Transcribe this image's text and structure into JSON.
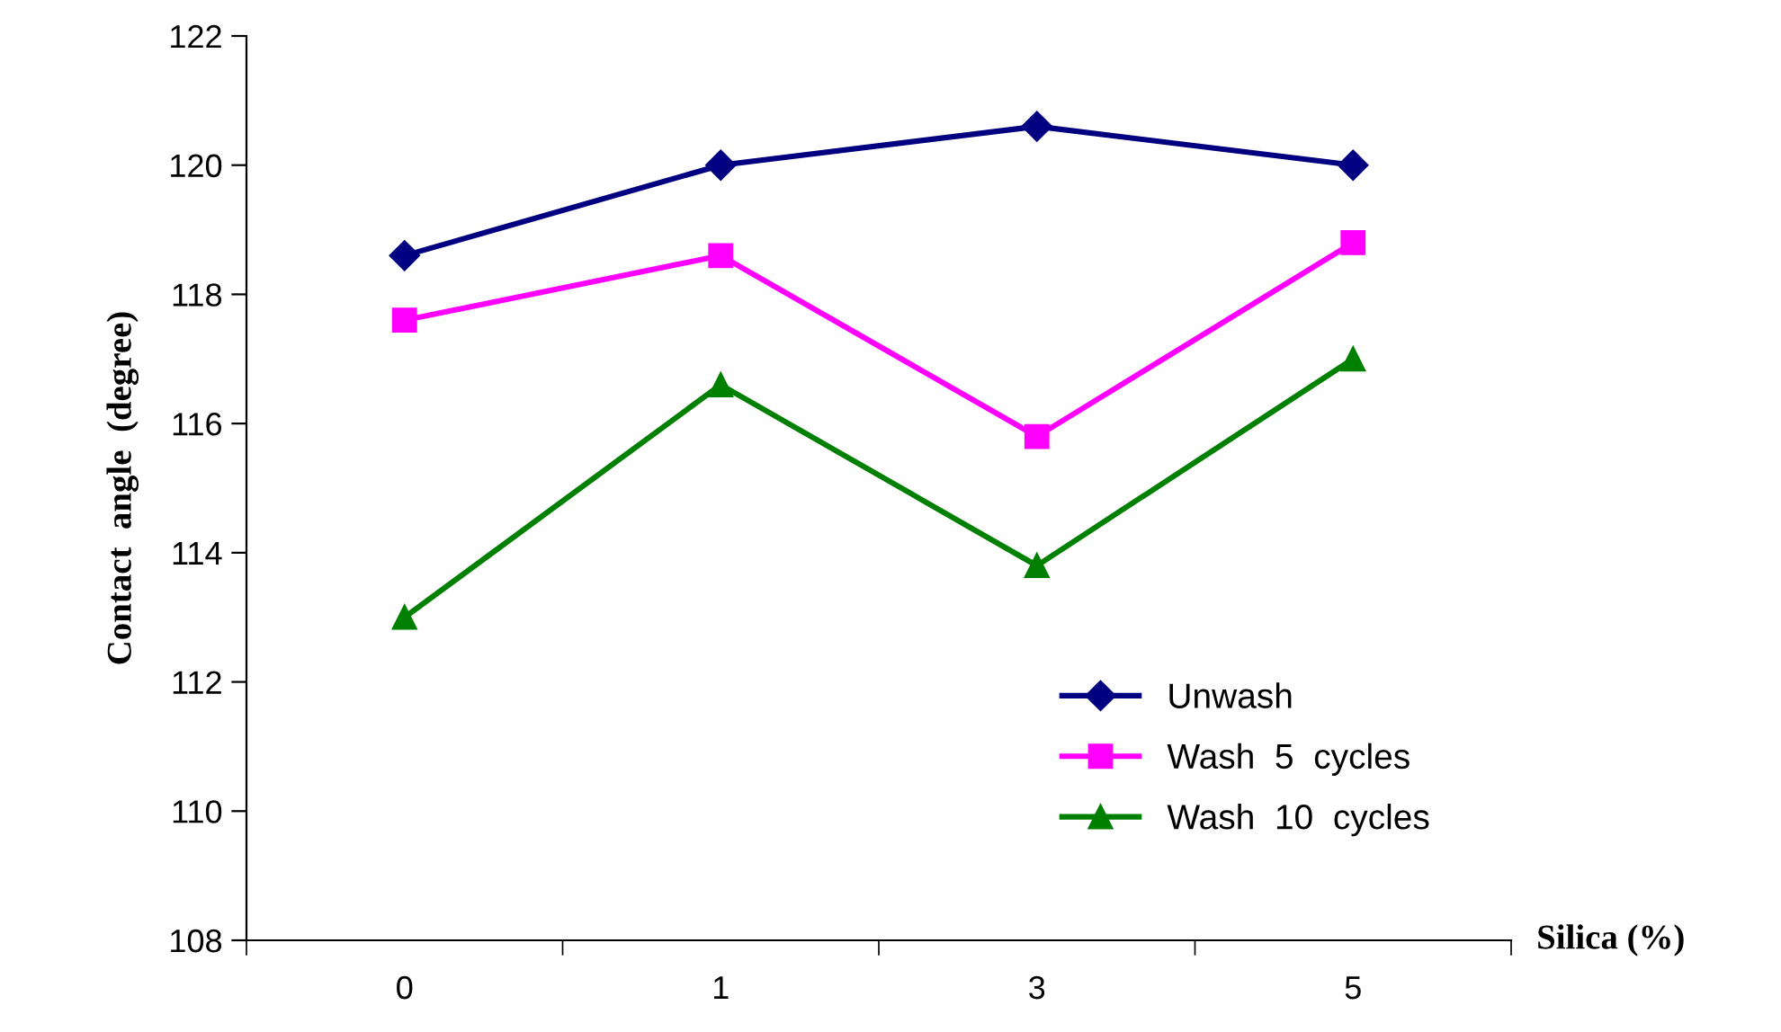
{
  "chart_data": {
    "type": "line",
    "xlabel": "Silica (%)",
    "ylabel": "Contact  angle  (degree)",
    "categories": [
      "0",
      "1",
      "3",
      "5"
    ],
    "series": [
      {
        "name": "Unwash",
        "color": "#000080",
        "marker": "diamond",
        "values": [
          118.6,
          120.0,
          120.6,
          120.0
        ]
      },
      {
        "name": "Wash  5  cycles",
        "color": "#ff00ff",
        "marker": "square",
        "values": [
          117.6,
          118.6,
          115.8,
          118.8
        ]
      },
      {
        "name": "Wash  10  cycles",
        "color": "#008000",
        "marker": "triangle",
        "values": [
          113.0,
          116.6,
          113.8,
          117.0
        ]
      }
    ],
    "ylim": [
      108,
      122
    ],
    "yticks": [
      108,
      110,
      112,
      114,
      116,
      118,
      120,
      122
    ],
    "grid": false,
    "legend": "bottom right",
    "line_style": "solid"
  }
}
